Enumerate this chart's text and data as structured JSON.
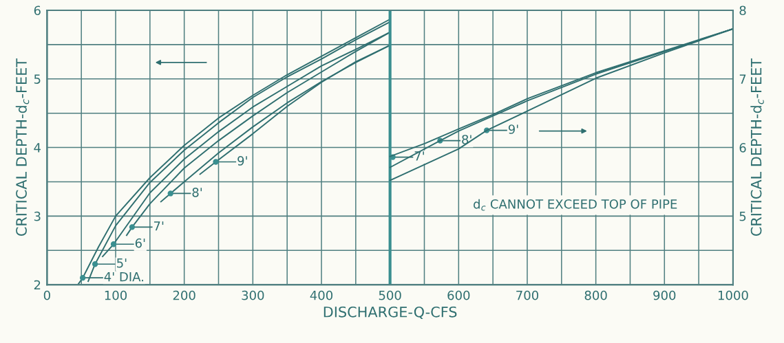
{
  "chart_data": {
    "type": "line",
    "xlabel": "DISCHARGE-Q-CFS",
    "ylabel": "CRITICAL DEPTH-d$_{c}$-FEET",
    "y2label": "CRITICAL DEPTH-d$_{c}$-FEET",
    "xlim": [
      0,
      1000
    ],
    "xticks": [
      0,
      {
        "value": 50,
        "label": null
      },
      100,
      {
        "value": 150,
        "label": null
      },
      200,
      {
        "value": 250,
        "label": null
      },
      300,
      {
        "value": 350,
        "label": null
      },
      400,
      {
        "value": 450,
        "label": null
      },
      500,
      {
        "value": 550,
        "label": null
      },
      600,
      {
        "value": 650,
        "label": null
      },
      700,
      {
        "value": 750,
        "label": null
      },
      800,
      {
        "value": 850,
        "label": null
      },
      900,
      {
        "value": 950,
        "label": null
      },
      1000
    ],
    "ylim": [
      2,
      6
    ],
    "yticks": [
      2,
      {
        "value": 2.5,
        "label": null
      },
      3,
      {
        "value": 3.5,
        "label": null
      },
      4,
      {
        "value": 4.5,
        "label": null
      },
      5,
      {
        "value": 5.5,
        "label": null
      },
      6
    ],
    "y2lim": [
      4,
      8
    ],
    "y2ticks": [
      5,
      6,
      7,
      8
    ],
    "grid": true,
    "marker": "none",
    "line_style": "solid",
    "series": [
      {
        "color": "#2f6f70",
        "x": [
          45,
          52,
          75,
          100,
          150,
          200,
          250,
          300,
          350,
          400,
          450,
          500
        ],
        "values": [
          2.0,
          2.1,
          2.55,
          3.0,
          3.56,
          4.03,
          4.43,
          4.76,
          5.06,
          5.33,
          5.6,
          5.87
        ]
      },
      {
        "color": "#2f6f70",
        "x": [
          60,
          70,
          100,
          150,
          200,
          250,
          300,
          350,
          400,
          450,
          500
        ],
        "values": [
          2.05,
          2.3,
          2.86,
          3.49,
          3.96,
          4.36,
          4.73,
          5.03,
          5.29,
          5.57,
          5.83
        ]
      },
      {
        "color": "#2f6f70",
        "x": [
          81,
          97,
          150,
          200,
          250,
          300,
          350,
          400,
          450,
          500
        ],
        "values": [
          2.41,
          2.59,
          3.34,
          3.83,
          4.23,
          4.59,
          4.89,
          5.19,
          5.43,
          5.68
        ]
      },
      {
        "color": "#2f6f70",
        "x": [
          116,
          124,
          150,
          200,
          250,
          300,
          350,
          400,
          450,
          500
        ],
        "values": [
          2.72,
          2.84,
          3.18,
          3.7,
          4.1,
          4.46,
          4.8,
          5.1,
          5.4,
          5.68
        ]
      },
      {
        "color": "#2f6f70",
        "x": [
          166,
          180,
          200,
          250,
          300,
          350,
          400,
          450,
          500
        ],
        "values": [
          3.21,
          3.33,
          3.5,
          3.92,
          4.3,
          4.65,
          4.96,
          5.24,
          5.49
        ]
      },
      {
        "color": "#2f6f70",
        "x": [
          223,
          246,
          300,
          350,
          400,
          450,
          500
        ],
        "values": [
          3.61,
          3.79,
          4.2,
          4.6,
          4.95,
          5.25,
          5.49
        ]
      },
      {
        "color": "#2f6f70",
        "axis": "y2",
        "x": [
          500,
          551,
          600,
          650,
          700,
          800,
          900,
          1000
        ],
        "values": [
          5.87,
          6.06,
          6.27,
          6.48,
          6.71,
          7.09,
          7.41,
          7.73
        ]
      },
      {
        "color": "#2f6f70",
        "axis": "y2",
        "x": [
          500,
          573,
          600,
          650,
          700,
          800,
          900,
          1000
        ],
        "values": [
          5.71,
          6.1,
          6.24,
          6.46,
          6.68,
          7.07,
          7.4,
          7.73
        ]
      },
      {
        "color": "#2f6f70",
        "axis": "y2",
        "x": [
          500,
          600,
          641,
          700,
          800,
          900,
          1000
        ],
        "values": [
          5.52,
          5.98,
          6.25,
          6.53,
          7.01,
          7.38,
          7.73
        ]
      }
    ],
    "ref_lines": [
      {
        "axis": "x",
        "value": 500,
        "color": "#3a8f90"
      }
    ],
    "annotations": [
      {
        "text": "4' DIA.",
        "x": 52,
        "y": 2.1
      },
      {
        "text": "5'",
        "x": 70,
        "y": 2.3
      },
      {
        "text": "6'",
        "x": 97,
        "y": 2.59
      },
      {
        "text": "7'",
        "x": 124,
        "y": 2.84
      },
      {
        "text": "8'",
        "x": 180,
        "y": 3.33
      },
      {
        "text": "9'",
        "x": 246,
        "y": 3.79
      },
      {
        "text": "7'",
        "x": 504,
        "y": 3.86
      },
      {
        "text": "8'",
        "x": 573,
        "y": 4.1
      },
      {
        "text": "9'",
        "x": 641,
        "y": 4.25
      },
      "d$_{c}$ CANNOT EXCEED TOP OF PIPE"
    ]
  }
}
